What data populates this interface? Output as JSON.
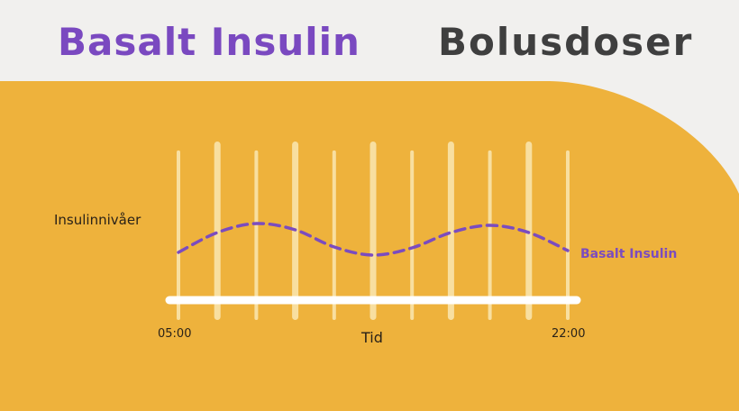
{
  "header": {
    "title_left": "Basalt Insulin",
    "title_right": "Bolusdoser"
  },
  "colors": {
    "background": "#f1f0ee",
    "panel": "#eeb23c",
    "title_left": "#7a49c0",
    "title_right": "#3f3f3f",
    "series": "#7b4cbf",
    "bars": "#f8dfa0",
    "axis": "#ffffff",
    "label": "#2a2218"
  },
  "chart_data": {
    "type": "line",
    "ylabel": "Insulinnivåer",
    "xlabel": "Tid",
    "x_ticks": [
      "05:00",
      "22:00"
    ],
    "series": [
      {
        "name": "Basalt Insulin",
        "style": "dashed",
        "x": [
          0,
          0.1,
          0.2,
          0.3,
          0.4,
          0.5,
          0.6,
          0.7,
          0.8,
          0.9,
          1.0
        ],
        "y": [
          0.3,
          0.52,
          0.62,
          0.55,
          0.36,
          0.27,
          0.35,
          0.52,
          0.6,
          0.52,
          0.32
        ]
      }
    ],
    "bars": {
      "count": 11,
      "heights": [
        0.95,
        1.0,
        0.95,
        1.0,
        0.95,
        1.0,
        0.95,
        1.0,
        0.95,
        1.0,
        0.95
      ]
    },
    "grid": false,
    "legend": "inline-right"
  }
}
